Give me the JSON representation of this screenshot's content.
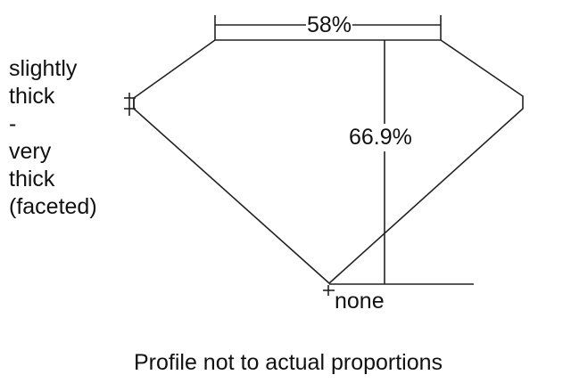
{
  "diagram": {
    "girdle_label_lines": [
      "slightly",
      "thick",
      "-",
      "very",
      "thick",
      "(faceted)"
    ],
    "table_label": "58%",
    "depth_label": "66.9%",
    "culet_label": "none",
    "footer": "Profile not to actual proportions",
    "line_color": "#222222"
  }
}
